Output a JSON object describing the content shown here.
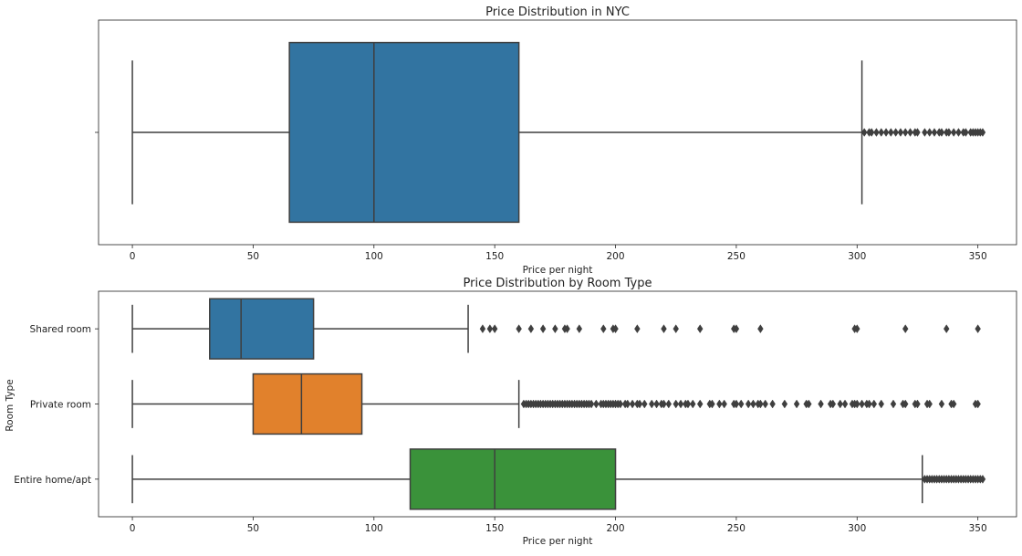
{
  "chart_data": [
    {
      "type": "box",
      "title": "Price Distribution in NYC",
      "xlabel": "Price per night",
      "ylabel": "",
      "xlim": [
        -14,
        366
      ],
      "xticks": [
        0,
        50,
        100,
        150,
        200,
        250,
        300,
        350
      ],
      "categories": [
        ""
      ],
      "boxes": [
        {
          "category": "",
          "color": "#3274a1",
          "min": 0,
          "q1": 65,
          "median": 100,
          "q3": 160,
          "max": 302,
          "outliers": [
            303,
            305,
            306,
            308,
            310,
            312,
            314,
            316,
            318,
            320,
            322,
            324,
            325,
            328,
            330,
            332,
            334,
            335,
            337,
            338,
            340,
            342,
            344,
            345,
            347,
            348,
            349,
            350,
            351,
            352
          ]
        }
      ]
    },
    {
      "type": "box",
      "title": "Price Distribution by Room Type",
      "xlabel": "Price per night",
      "ylabel": "Room Type",
      "xlim": [
        -14,
        366
      ],
      "xticks": [
        0,
        50,
        100,
        150,
        200,
        250,
        300,
        350
      ],
      "categories": [
        "Shared room",
        "Private room",
        "Entire home/apt"
      ],
      "boxes": [
        {
          "category": "Shared room",
          "color": "#3274a1",
          "min": 0,
          "q1": 32,
          "median": 45,
          "q3": 75,
          "max": 139,
          "outliers": [
            145,
            148,
            150,
            160,
            165,
            170,
            175,
            179,
            180,
            185,
            195,
            199,
            200,
            209,
            220,
            225,
            235,
            249,
            250,
            260,
            299,
            300,
            320,
            337,
            350
          ]
        },
        {
          "category": "Private room",
          "color": "#e1812c",
          "min": 0,
          "q1": 50,
          "median": 70,
          "q3": 95,
          "max": 160,
          "outliers": [
            162,
            163,
            164,
            165,
            166,
            167,
            168,
            169,
            170,
            171,
            172,
            173,
            174,
            175,
            176,
            177,
            178,
            179,
            180,
            181,
            182,
            183,
            184,
            185,
            186,
            187,
            188,
            189,
            190,
            192,
            194,
            195,
            196,
            197,
            198,
            199,
            200,
            201,
            202,
            204,
            205,
            207,
            209,
            210,
            212,
            215,
            217,
            219,
            220,
            222,
            225,
            227,
            229,
            230,
            232,
            235,
            239,
            240,
            243,
            245,
            249,
            250,
            252,
            255,
            257,
            259,
            260,
            262,
            265,
            270,
            275,
            279,
            280,
            285,
            289,
            290,
            293,
            295,
            298,
            299,
            300,
            302,
            304,
            305,
            307,
            310,
            315,
            319,
            320,
            324,
            325,
            329,
            330,
            335,
            339,
            340,
            349,
            350
          ]
        },
        {
          "category": "Entire home/apt",
          "color": "#3a923a",
          "min": 0,
          "q1": 115,
          "median": 150,
          "q3": 200,
          "max": 327,
          "outliers": [
            328,
            329,
            330,
            331,
            332,
            333,
            334,
            335,
            336,
            337,
            338,
            339,
            340,
            341,
            342,
            343,
            344,
            345,
            346,
            347,
            348,
            349,
            350,
            351,
            352
          ]
        }
      ]
    }
  ]
}
